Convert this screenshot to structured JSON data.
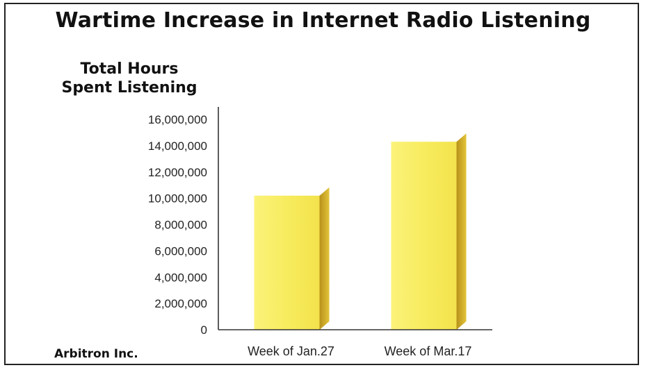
{
  "chart_data": {
    "type": "bar",
    "title": "Wartime Increase in Internet Radio Listening",
    "ylabel_lines": [
      "Total Hours",
      "Spent Listening"
    ],
    "xlabel": "",
    "categories": [
      "Week of Jan.27",
      "Week of Mar.17"
    ],
    "values": [
      10200000,
      14300000
    ],
    "ylim": [
      0,
      16000000
    ],
    "yticks": [
      0,
      2000000,
      4000000,
      6000000,
      8000000,
      10000000,
      12000000,
      14000000,
      16000000
    ],
    "ytick_labels": [
      "0",
      "2,000,000",
      "4,000,000",
      "6,000,000",
      "8,000,000",
      "10,000,000",
      "12,000,000",
      "14,000,000",
      "16,000,000"
    ],
    "grid": false,
    "legend": "none",
    "source": "Arbitron Inc.",
    "colors": {
      "bar_front": "#f8ef6a",
      "bar_side": "#c9a71a",
      "axis": "#333333"
    }
  }
}
